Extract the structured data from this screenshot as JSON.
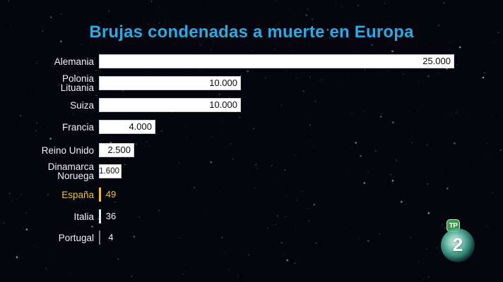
{
  "title": "Brujas condenadas a muerte en Europa",
  "title_color": "#2fa9e1",
  "chart_data": {
    "type": "bar",
    "orientation": "horizontal",
    "title": "Brujas condenadas a muerte en Europa",
    "xlabel": "",
    "ylabel": "",
    "xlim": [
      0,
      25000
    ],
    "grid": false,
    "legend": false,
    "bar_color": "#ffffff",
    "value_text_color": "#0b0b0b",
    "highlight_color": "#e3c449",
    "categories": [
      "Alemania",
      "Polonia Lituania",
      "Suiza",
      "Francia",
      "Reino Unido",
      "Dinamarca Noruega",
      "España",
      "Italia",
      "Portugal"
    ],
    "values": [
      25000,
      10000,
      10000,
      4000,
      2500,
      1600,
      49,
      36,
      4
    ],
    "rows": [
      {
        "label_lines": [
          "Alemania"
        ],
        "value": 25000,
        "value_label": "25.000",
        "highlight": false
      },
      {
        "label_lines": [
          "Polonia",
          "Lituania"
        ],
        "value": 10000,
        "value_label": "10.000",
        "highlight": false
      },
      {
        "label_lines": [
          "Suiza"
        ],
        "value": 10000,
        "value_label": "10.000",
        "highlight": false
      },
      {
        "label_lines": [
          "Francia"
        ],
        "value": 4000,
        "value_label": "4.000",
        "highlight": false
      },
      {
        "label_lines": [
          "Reino Unido"
        ],
        "value": 2500,
        "value_label": "2.500",
        "highlight": false
      },
      {
        "label_lines": [
          "Dinamarca",
          "Noruega"
        ],
        "value": 1600,
        "value_label": "1.600",
        "highlight": false
      },
      {
        "label_lines": [
          "España"
        ],
        "value": 49,
        "value_label": "49",
        "highlight": true
      },
      {
        "label_lines": [
          "Italia"
        ],
        "value": 36,
        "value_label": "36",
        "highlight": false
      },
      {
        "label_lines": [
          "Portugal"
        ],
        "value": 4,
        "value_label": "4",
        "highlight": false
      }
    ]
  },
  "logo": {
    "rating_badge": "TP",
    "channel": "2"
  }
}
